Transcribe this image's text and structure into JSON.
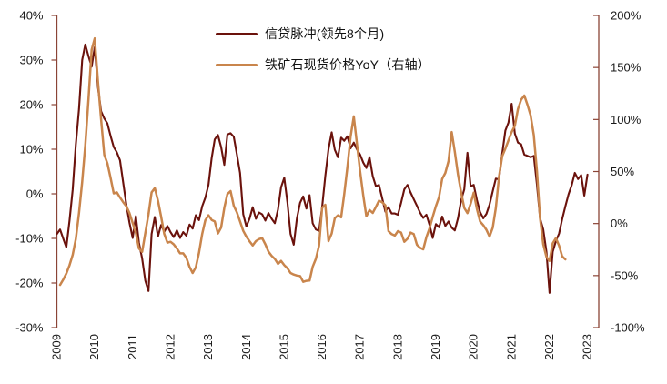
{
  "chart_data": {
    "type": "line",
    "title": "",
    "legend_position": "top-center",
    "grid": false,
    "left_axis": {
      "side": "left",
      "min": -30,
      "max": 40,
      "tick_values": [
        40,
        30,
        20,
        10,
        0,
        -10,
        -20,
        -30
      ],
      "tick_labels": [
        "40%",
        "30%",
        "20%",
        "10%",
        "0%",
        "-10%",
        "-20%",
        "-30%"
      ]
    },
    "right_axis": {
      "side": "right",
      "min": -100,
      "max": 200,
      "tick_values": [
        200,
        150,
        100,
        50,
        0,
        -50,
        -100
      ],
      "tick_labels": [
        "200%",
        "150%",
        "100%",
        "50%",
        "0%",
        "-50%",
        "-100%"
      ]
    },
    "x_axis": {
      "min": 2009,
      "max": 2023.3,
      "tick_values": [
        2009,
        2010,
        2011,
        2012,
        2013,
        2014,
        2015,
        2016,
        2017,
        2018,
        2019,
        2020,
        2021,
        2022,
        2023
      ],
      "tick_labels": [
        "2009",
        "2010",
        "2011",
        "2012",
        "2013",
        "2014",
        "2015",
        "2016",
        "2017",
        "2018",
        "2019",
        "2020",
        "2021",
        "2022",
        "2023"
      ]
    },
    "series": [
      {
        "name": "信贷脉冲(领先8个月)",
        "color": "#6b120c",
        "axis": "left",
        "unit": "%",
        "start_year": 2009.0,
        "step_years": 0.0833333,
        "values": [
          -9,
          -8,
          -10,
          -12,
          -6,
          1,
          11,
          19,
          30,
          33.5,
          30.9,
          28.5,
          32.9,
          24,
          18.5,
          16.9,
          15.8,
          13,
          10.5,
          9.3,
          7.5,
          2.5,
          -2.5,
          -6.5,
          -9.9,
          -5,
          -11,
          -14.5,
          -19.5,
          -21.8,
          -9,
          -5.2,
          -9.6,
          -7,
          -8.5,
          -7.2,
          -8.6,
          -9.7,
          -8.2,
          -9.9,
          -8.6,
          -9.4,
          -6.9,
          -7.8,
          -4.8,
          -5.9,
          -2.8,
          -0.9,
          2,
          8,
          12.2,
          13.2,
          10.5,
          6.5,
          13.3,
          13.6,
          12.8,
          8.9,
          4.7,
          -4.6,
          -7.3,
          -5.6,
          -3,
          -5.6,
          -4.2,
          -4.6,
          -6,
          -4.3,
          -5.6,
          -6.6,
          -3.5,
          1.5,
          3.6,
          -2,
          -9,
          -11.4,
          -5.5,
          -2,
          -0.6,
          -3.3,
          -0.3,
          -6.6,
          -8,
          -8.3,
          -3,
          4,
          10,
          13.8,
          9.9,
          8.2,
          12.6,
          11.9,
          12.9,
          10.2,
          11.5,
          10,
          8.8,
          7,
          5.8,
          8.2,
          4,
          1.7,
          2,
          -1,
          -4,
          -3,
          -4.4,
          -4.4,
          -4.7,
          -2,
          1,
          2,
          0.3,
          -1.2,
          -2.7,
          -4.2,
          -5.4,
          -4.7,
          -7,
          -9.9,
          -6.8,
          -7.5,
          -5.1,
          -7.2,
          -6.2,
          -7.6,
          -8.2,
          -5.5,
          -1.4,
          1,
          9.2,
          1.7,
          2,
          -1.4,
          -4.1,
          -5.5,
          -4.5,
          -2.4,
          0.6,
          3.4,
          3.2,
          9,
          14.2,
          16,
          20.2,
          13.5,
          11.5,
          11.1,
          8.8,
          8.5,
          8.2,
          8.5,
          2,
          -5.5,
          -8,
          -13,
          -22.2,
          -13,
          -10.6,
          -8.9,
          -5.7,
          -2.8,
          -0.1,
          1.9,
          4.7,
          3.3,
          4.2,
          -0.4,
          4.3
        ]
      },
      {
        "name": "铁矿石现货价格YoY（右轴）",
        "color": "#c9854c",
        "axis": "right",
        "unit": "%",
        "start_year": 2009.0833333,
        "step_years": 0.0833333,
        "values": [
          -59,
          -54,
          -48,
          -40,
          -30,
          -15,
          10,
          40,
          75,
          119,
          167,
          178,
          137,
          100,
          66,
          58,
          44,
          29,
          30,
          25,
          20.5,
          16.5,
          10,
          0.5,
          -9,
          -24,
          -27.1,
          -9,
          9,
          30,
          34.1,
          22,
          7,
          -10,
          -18.4,
          -17.5,
          -20,
          -24,
          -28.6,
          -28.6,
          -32.9,
          -41.7,
          -47.5,
          -42,
          -28,
          -10,
          3,
          7.9,
          3.5,
          2,
          -9.6,
          -3.8,
          15.1,
          28.3,
          31.2,
          17,
          10.8,
          2,
          -7,
          -12.5,
          -17,
          -21,
          -16.9,
          -15,
          -14,
          -20,
          -27,
          -31,
          -34,
          -38.8,
          -35.9,
          -40,
          -43,
          -47.5,
          -49,
          -50,
          -50.4,
          -56,
          -55,
          -54.8,
          -41.6,
          -34,
          -21.3,
          15.2,
          18,
          -16.9,
          -9.6,
          5,
          7.9,
          6,
          28.3,
          54.5,
          83.7,
          103,
          77,
          50.4,
          27,
          7,
          13,
          10.2,
          16,
          21.9,
          20.4,
          17.5,
          -7.3,
          -10.2,
          -11.6,
          -7.3,
          -8.7,
          -17.5,
          -14.6,
          -8.7,
          -10.2,
          -20.4,
          -23.3,
          -24.8,
          -13.1,
          -4.4,
          6.4,
          16.6,
          25.4,
          42.8,
          48.7,
          60,
          88,
          69.1,
          47.2,
          29.7,
          15,
          10,
          19,
          29.7,
          14,
          2,
          -1.5,
          -6,
          -12.5,
          -4,
          15,
          45,
          64.7,
          72,
          80,
          88,
          94,
          110,
          119,
          123,
          114,
          104,
          85,
          50,
          5,
          -20,
          -32,
          -35.9,
          -19,
          -14,
          -21.3,
          -31.5,
          -34.4
        ]
      }
    ]
  },
  "legend": {
    "items": [
      {
        "label": "信贷脉冲(领先8个月)"
      },
      {
        "label": "铁矿石现货价格YoY（右轴）"
      }
    ]
  }
}
